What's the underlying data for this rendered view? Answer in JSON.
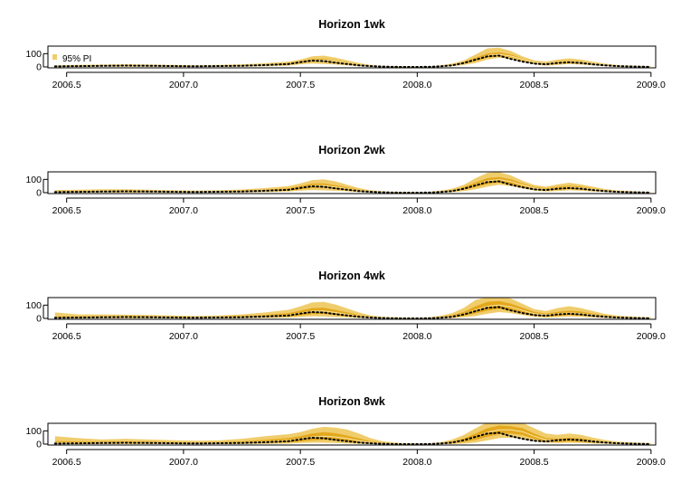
{
  "chart_data": [
    {
      "type": "area",
      "title": "Horizon 1wk",
      "legend": "95% PI",
      "legend_position": "top-left",
      "xlim": [
        2006.42,
        2009.02
      ],
      "ylim": [
        0,
        150
      ],
      "y_ticks": [
        0,
        100
      ],
      "x_ticks": [
        "2006.5",
        "2007.0",
        "2007.5",
        "2008.0",
        "2008.5",
        "2009.0"
      ],
      "colors": {
        "pi95": "#F0CD6C",
        "pi50": "#E3A81C",
        "median": "#F7E6A8",
        "observed": "#000000"
      },
      "x": [
        2006.45,
        2006.55,
        2006.65,
        2006.75,
        2006.85,
        2006.95,
        2007.05,
        2007.15,
        2007.25,
        2007.35,
        2007.45,
        2007.5,
        2007.55,
        2007.6,
        2007.65,
        2007.7,
        2007.75,
        2007.8,
        2007.85,
        2007.9,
        2007.95,
        2008.0,
        2008.05,
        2008.1,
        2008.15,
        2008.2,
        2008.25,
        2008.3,
        2008.35,
        2008.4,
        2008.45,
        2008.5,
        2008.55,
        2008.6,
        2008.65,
        2008.7,
        2008.75,
        2008.8,
        2008.85,
        2008.9,
        2008.95,
        2009.0
      ],
      "pi95_lower": [
        0,
        1,
        2,
        2,
        2,
        1,
        1,
        2,
        3,
        5,
        10,
        20,
        25,
        22,
        18,
        12,
        6,
        3,
        1,
        0,
        0,
        0,
        0,
        2,
        6,
        15,
        30,
        55,
        70,
        60,
        40,
        20,
        10,
        15,
        22,
        18,
        12,
        8,
        4,
        2,
        1,
        0
      ],
      "pi95_upper": [
        12,
        16,
        18,
        20,
        18,
        15,
        12,
        15,
        20,
        28,
        40,
        55,
        80,
        85,
        70,
        50,
        30,
        15,
        8,
        5,
        3,
        2,
        5,
        12,
        25,
        50,
        95,
        140,
        145,
        120,
        80,
        50,
        40,
        55,
        65,
        55,
        40,
        25,
        15,
        10,
        8,
        5
      ],
      "pi50_lower": [
        2,
        4,
        6,
        6,
        6,
        5,
        4,
        5,
        7,
        11,
        18,
        30,
        40,
        42,
        32,
        22,
        12,
        6,
        3,
        1,
        1,
        0,
        1,
        4,
        10,
        24,
        45,
        70,
        85,
        72,
        50,
        28,
        18,
        25,
        32,
        28,
        20,
        12,
        7,
        4,
        2,
        1
      ],
      "pi50_upper": [
        7,
        10,
        12,
        13,
        12,
        10,
        8,
        10,
        13,
        19,
        30,
        44,
        60,
        62,
        50,
        36,
        20,
        10,
        5,
        3,
        2,
        1,
        3,
        8,
        18,
        38,
        70,
        100,
        110,
        95,
        65,
        40,
        28,
        40,
        48,
        42,
        30,
        18,
        11,
        7,
        5,
        3
      ],
      "median": [
        5,
        7,
        9,
        10,
        9,
        8,
        6,
        8,
        10,
        15,
        24,
        38,
        50,
        52,
        42,
        30,
        16,
        8,
        4,
        2,
        1,
        0,
        2,
        6,
        14,
        32,
        58,
        85,
        95,
        82,
        58,
        34,
        24,
        34,
        40,
        36,
        25,
        15,
        9,
        5,
        3,
        2
      ],
      "observed": [
        4,
        6,
        8,
        10,
        9,
        7,
        5,
        7,
        9,
        14,
        22,
        36,
        48,
        44,
        32,
        22,
        12,
        6,
        3,
        1,
        0,
        0,
        1,
        5,
        12,
        30,
        55,
        80,
        85,
        60,
        40,
        25,
        20,
        30,
        35,
        30,
        20,
        12,
        7,
        4,
        2,
        1
      ]
    },
    {
      "type": "area",
      "title": "Horizon 2wk",
      "xlim": [
        2006.42,
        2009.02
      ],
      "ylim": [
        0,
        150
      ],
      "y_ticks": [
        0,
        100
      ],
      "x_ticks": [
        "2006.5",
        "2007.0",
        "2007.5",
        "2008.0",
        "2008.5",
        "2009.0"
      ],
      "colors": {
        "pi95": "#F0CD6C",
        "pi50": "#E3A81C",
        "median": "#F7E6A8",
        "observed": "#000000"
      },
      "x": [
        2006.45,
        2006.55,
        2006.65,
        2006.75,
        2006.85,
        2006.95,
        2007.05,
        2007.15,
        2007.25,
        2007.35,
        2007.45,
        2007.5,
        2007.55,
        2007.6,
        2007.65,
        2007.7,
        2007.75,
        2007.8,
        2007.85,
        2007.9,
        2007.95,
        2008.0,
        2008.05,
        2008.1,
        2008.15,
        2008.2,
        2008.25,
        2008.3,
        2008.35,
        2008.4,
        2008.45,
        2008.5,
        2008.55,
        2008.6,
        2008.65,
        2008.7,
        2008.75,
        2008.8,
        2008.85,
        2008.9,
        2008.95,
        2009.0
      ],
      "pi95_lower": [
        0,
        1,
        1,
        1,
        1,
        1,
        1,
        1,
        2,
        4,
        8,
        15,
        20,
        18,
        14,
        10,
        5,
        2,
        1,
        0,
        0,
        0,
        0,
        1,
        4,
        12,
        25,
        45,
        60,
        50,
        32,
        16,
        8,
        12,
        18,
        14,
        9,
        6,
        3,
        1,
        1,
        0
      ],
      "pi95_upper": [
        20,
        22,
        25,
        25,
        22,
        18,
        15,
        18,
        24,
        35,
        50,
        70,
        95,
        100,
        85,
        60,
        35,
        18,
        10,
        6,
        4,
        3,
        6,
        15,
        30,
        60,
        110,
        150,
        155,
        130,
        90,
        58,
        45,
        62,
        75,
        62,
        45,
        28,
        17,
        12,
        9,
        6
      ],
      "pi50_lower": [
        2,
        4,
        5,
        5,
        5,
        4,
        3,
        4,
        6,
        10,
        16,
        26,
        36,
        38,
        28,
        20,
        10,
        5,
        2,
        1,
        1,
        0,
        1,
        3,
        9,
        22,
        42,
        65,
        78,
        66,
        46,
        25,
        16,
        22,
        28,
        24,
        17,
        10,
        6,
        3,
        2,
        1
      ],
      "pi50_upper": [
        9,
        12,
        14,
        15,
        14,
        11,
        9,
        11,
        15,
        22,
        34,
        50,
        68,
        70,
        56,
        40,
        22,
        11,
        6,
        3,
        2,
        1,
        3,
        9,
        20,
        42,
        78,
        110,
        118,
        100,
        70,
        44,
        32,
        44,
        52,
        46,
        33,
        20,
        12,
        8,
        5,
        3
      ],
      "median": [
        5,
        7,
        9,
        10,
        9,
        8,
        6,
        8,
        10,
        15,
        24,
        38,
        52,
        54,
        42,
        30,
        16,
        8,
        4,
        2,
        1,
        0,
        2,
        6,
        14,
        32,
        60,
        88,
        98,
        84,
        58,
        35,
        24,
        34,
        40,
        36,
        25,
        15,
        9,
        5,
        3,
        2
      ],
      "observed": [
        4,
        6,
        8,
        10,
        9,
        7,
        5,
        7,
        9,
        14,
        22,
        36,
        48,
        44,
        32,
        22,
        12,
        6,
        3,
        1,
        0,
        0,
        1,
        5,
        12,
        30,
        55,
        80,
        85,
        60,
        40,
        25,
        20,
        30,
        35,
        30,
        20,
        12,
        7,
        4,
        2,
        1
      ]
    },
    {
      "type": "area",
      "title": "Horizon 4wk",
      "xlim": [
        2006.42,
        2009.02
      ],
      "ylim": [
        0,
        150
      ],
      "y_ticks": [
        0,
        100
      ],
      "x_ticks": [
        "2006.5",
        "2007.0",
        "2007.5",
        "2008.0",
        "2008.5",
        "2009.0"
      ],
      "colors": {
        "pi95": "#F0CD6C",
        "pi50": "#E3A81C",
        "median": "#F7E6A8",
        "observed": "#000000"
      },
      "x": [
        2006.45,
        2006.55,
        2006.65,
        2006.75,
        2006.85,
        2006.95,
        2007.05,
        2007.15,
        2007.25,
        2007.35,
        2007.45,
        2007.5,
        2007.55,
        2007.6,
        2007.65,
        2007.7,
        2007.75,
        2007.8,
        2007.85,
        2007.9,
        2007.95,
        2008.0,
        2008.05,
        2008.1,
        2008.15,
        2008.2,
        2008.25,
        2008.3,
        2008.35,
        2008.4,
        2008.45,
        2008.5,
        2008.55,
        2008.6,
        2008.65,
        2008.7,
        2008.75,
        2008.8,
        2008.85,
        2008.9,
        2008.95,
        2009.0
      ],
      "pi95_lower": [
        0,
        0,
        1,
        1,
        1,
        1,
        0,
        1,
        2,
        3,
        6,
        10,
        15,
        14,
        10,
        7,
        4,
        2,
        0,
        0,
        0,
        0,
        0,
        1,
        3,
        8,
        18,
        35,
        48,
        40,
        25,
        12,
        6,
        9,
        14,
        11,
        7,
        4,
        2,
        1,
        0,
        0
      ],
      "pi95_upper": [
        45,
        30,
        30,
        28,
        25,
        22,
        18,
        22,
        30,
        45,
        65,
        90,
        120,
        125,
        105,
        75,
        45,
        22,
        12,
        8,
        5,
        4,
        8,
        20,
        40,
        80,
        140,
        160,
        165,
        150,
        110,
        70,
        55,
        78,
        92,
        78,
        56,
        35,
        22,
        15,
        11,
        8
      ],
      "pi50_lower": [
        3,
        3,
        4,
        5,
        5,
        4,
        3,
        4,
        5,
        9,
        14,
        22,
        32,
        34,
        25,
        18,
        9,
        4,
        2,
        1,
        0,
        0,
        1,
        3,
        8,
        20,
        38,
        58,
        72,
        60,
        42,
        22,
        14,
        20,
        26,
        22,
        15,
        9,
        5,
        3,
        2,
        1
      ],
      "pi50_upper": [
        14,
        14,
        16,
        16,
        15,
        13,
        10,
        13,
        17,
        26,
        40,
        58,
        78,
        80,
        64,
        46,
        26,
        13,
        7,
        4,
        2,
        1,
        4,
        11,
        24,
        50,
        92,
        125,
        130,
        112,
        80,
        50,
        36,
        50,
        58,
        52,
        37,
        22,
        13,
        9,
        6,
        4
      ],
      "median": [
        6,
        7,
        9,
        10,
        9,
        8,
        6,
        8,
        10,
        16,
        25,
        40,
        54,
        56,
        44,
        31,
        17,
        8,
        4,
        2,
        1,
        0,
        2,
        6,
        15,
        34,
        62,
        90,
        100,
        86,
        60,
        36,
        25,
        35,
        41,
        37,
        26,
        15,
        9,
        5,
        3,
        2
      ],
      "observed": [
        4,
        6,
        8,
        10,
        9,
        7,
        5,
        7,
        9,
        14,
        22,
        36,
        48,
        44,
        32,
        22,
        12,
        6,
        3,
        1,
        0,
        0,
        1,
        5,
        12,
        30,
        55,
        80,
        85,
        60,
        40,
        25,
        20,
        30,
        35,
        30,
        20,
        12,
        7,
        4,
        2,
        1
      ]
    },
    {
      "type": "area",
      "title": "Horizon 8wk",
      "xlim": [
        2006.42,
        2009.02
      ],
      "ylim": [
        0,
        150
      ],
      "y_ticks": [
        0,
        100
      ],
      "x_ticks": [
        "2006.5",
        "2007.0",
        "2007.5",
        "2008.0",
        "2008.5",
        "2009.0"
      ],
      "colors": {
        "pi95": "#F0CD6C",
        "pi50": "#E3A81C",
        "median": "#F7E6A8",
        "observed": "#000000"
      },
      "x": [
        2006.45,
        2006.55,
        2006.65,
        2006.75,
        2006.85,
        2006.95,
        2007.05,
        2007.15,
        2007.25,
        2007.35,
        2007.45,
        2007.5,
        2007.55,
        2007.6,
        2007.65,
        2007.7,
        2007.75,
        2007.8,
        2007.85,
        2007.9,
        2007.95,
        2008.0,
        2008.05,
        2008.1,
        2008.15,
        2008.2,
        2008.25,
        2008.3,
        2008.35,
        2008.4,
        2008.45,
        2008.5,
        2008.55,
        2008.6,
        2008.65,
        2008.7,
        2008.75,
        2008.8,
        2008.85,
        2008.9,
        2008.95,
        2009.0
      ],
      "pi95_lower": [
        0,
        0,
        0,
        0,
        0,
        0,
        0,
        0,
        1,
        2,
        4,
        8,
        10,
        10,
        8,
        5,
        3,
        1,
        0,
        0,
        0,
        0,
        0,
        0,
        1,
        4,
        12,
        28,
        45,
        50,
        40,
        22,
        10,
        8,
        10,
        8,
        5,
        3,
        1,
        0,
        0,
        0
      ],
      "pi95_upper": [
        60,
        45,
        35,
        40,
        35,
        30,
        25,
        28,
        40,
        60,
        75,
        90,
        115,
        130,
        125,
        110,
        80,
        45,
        22,
        12,
        6,
        4,
        6,
        14,
        35,
        70,
        120,
        165,
        175,
        170,
        160,
        120,
        80,
        70,
        80,
        70,
        50,
        32,
        20,
        14,
        10,
        8
      ],
      "pi50_lower": [
        4,
        4,
        5,
        5,
        5,
        4,
        3,
        4,
        6,
        9,
        14,
        20,
        28,
        32,
        28,
        20,
        12,
        6,
        2,
        1,
        0,
        0,
        0,
        2,
        6,
        15,
        32,
        55,
        75,
        80,
        68,
        40,
        20,
        16,
        20,
        17,
        12,
        7,
        4,
        2,
        1,
        1
      ],
      "pi50_upper": [
        22,
        20,
        18,
        20,
        18,
        15,
        12,
        15,
        20,
        32,
        46,
        60,
        80,
        90,
        82,
        65,
        42,
        22,
        11,
        6,
        3,
        2,
        3,
        8,
        20,
        42,
        80,
        120,
        140,
        135,
        120,
        80,
        46,
        40,
        48,
        42,
        30,
        18,
        11,
        7,
        5,
        3
      ],
      "median": [
        10,
        10,
        10,
        11,
        10,
        9,
        7,
        9,
        11,
        18,
        28,
        40,
        54,
        60,
        54,
        42,
        26,
        13,
        6,
        3,
        1,
        0,
        1,
        5,
        12,
        28,
        56,
        88,
        108,
        108,
        94,
        60,
        33,
        28,
        34,
        30,
        21,
        13,
        8,
        5,
        3,
        2
      ],
      "observed": [
        4,
        6,
        8,
        10,
        9,
        7,
        5,
        7,
        9,
        14,
        22,
        36,
        48,
        44,
        32,
        22,
        12,
        6,
        3,
        1,
        0,
        0,
        1,
        5,
        12,
        30,
        55,
        80,
        85,
        60,
        40,
        25,
        20,
        30,
        35,
        30,
        20,
        12,
        7,
        4,
        2,
        1
      ]
    }
  ]
}
